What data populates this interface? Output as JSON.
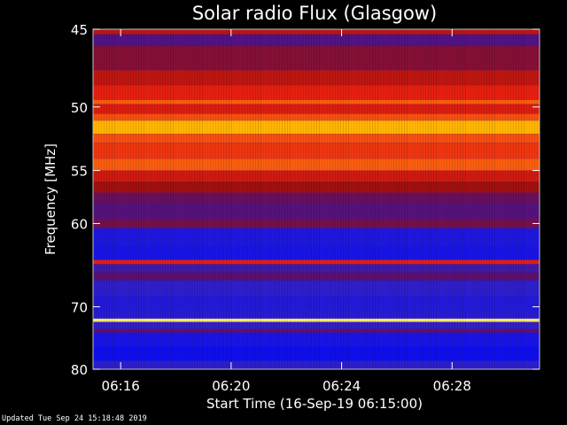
{
  "chart_data": {
    "type": "heatmap",
    "title": "Solar radio Flux (Glasgow)",
    "xlabel": "Start Time (16-Sep-19 06:15:00)",
    "ylabel": "Frequency [MHz]",
    "x_range": [
      "06:15:00",
      "06:31:10"
    ],
    "y_range_mhz": [
      45,
      80
    ],
    "y_scale": "reciprocal",
    "x_ticks": [
      "06:16",
      "06:20",
      "06:24",
      "06:28"
    ],
    "x_tick_minutes": [
      1,
      5,
      9,
      13
    ],
    "y_ticks": [
      45,
      50,
      55,
      60,
      70,
      80
    ],
    "colormap": [
      "#000080",
      "#1010f0",
      "#3020c8",
      "#5a1070",
      "#a01010",
      "#e82010",
      "#ff7010",
      "#ffc000",
      "#ffffa0"
    ],
    "bands": [
      {
        "from_mhz": 45.0,
        "to_mhz": 45.3,
        "intensity": 0.55
      },
      {
        "from_mhz": 45.3,
        "to_mhz": 46.0,
        "intensity": 0.35
      },
      {
        "from_mhz": 46.0,
        "to_mhz": 47.5,
        "intensity": 0.45
      },
      {
        "from_mhz": 47.5,
        "to_mhz": 48.5,
        "intensity": 0.55
      },
      {
        "from_mhz": 48.5,
        "to_mhz": 49.5,
        "intensity": 0.62
      },
      {
        "from_mhz": 49.5,
        "to_mhz": 49.8,
        "intensity": 0.72
      },
      {
        "from_mhz": 49.8,
        "to_mhz": 50.5,
        "intensity": 0.6
      },
      {
        "from_mhz": 50.5,
        "to_mhz": 51.0,
        "intensity": 0.7
      },
      {
        "from_mhz": 51.0,
        "to_mhz": 52.0,
        "intensity": 0.86
      },
      {
        "from_mhz": 52.0,
        "to_mhz": 52.7,
        "intensity": 0.7
      },
      {
        "from_mhz": 52.7,
        "to_mhz": 54.0,
        "intensity": 0.66
      },
      {
        "from_mhz": 54.0,
        "to_mhz": 55.0,
        "intensity": 0.72
      },
      {
        "from_mhz": 55.0,
        "to_mhz": 56.0,
        "intensity": 0.58
      },
      {
        "from_mhz": 56.0,
        "to_mhz": 57.0,
        "intensity": 0.5
      },
      {
        "from_mhz": 57.0,
        "to_mhz": 58.0,
        "intensity": 0.4
      },
      {
        "from_mhz": 58.0,
        "to_mhz": 59.5,
        "intensity": 0.36
      },
      {
        "from_mhz": 59.5,
        "to_mhz": 60.5,
        "intensity": 0.42
      },
      {
        "from_mhz": 60.5,
        "to_mhz": 62.5,
        "intensity": 0.18
      },
      {
        "from_mhz": 62.5,
        "to_mhz": 64.0,
        "intensity": 0.16
      },
      {
        "from_mhz": 64.0,
        "to_mhz": 64.5,
        "intensity": 0.62
      },
      {
        "from_mhz": 64.5,
        "to_mhz": 65.5,
        "intensity": 0.3
      },
      {
        "from_mhz": 65.5,
        "to_mhz": 66.5,
        "intensity": 0.38
      },
      {
        "from_mhz": 66.5,
        "to_mhz": 68.5,
        "intensity": 0.24
      },
      {
        "from_mhz": 68.5,
        "to_mhz": 70.5,
        "intensity": 0.2
      },
      {
        "from_mhz": 70.5,
        "to_mhz": 71.7,
        "intensity": 0.22
      },
      {
        "from_mhz": 71.7,
        "to_mhz": 72.2,
        "intensity": 0.96
      },
      {
        "from_mhz": 72.2,
        "to_mhz": 73.3,
        "intensity": 0.26
      },
      {
        "from_mhz": 73.3,
        "to_mhz": 73.8,
        "intensity": 0.4
      },
      {
        "from_mhz": 73.8,
        "to_mhz": 76.0,
        "intensity": 0.16
      },
      {
        "from_mhz": 76.0,
        "to_mhz": 78.5,
        "intensity": 0.12
      },
      {
        "from_mhz": 78.5,
        "to_mhz": 80.0,
        "intensity": 0.24
      }
    ],
    "grid": false,
    "legend": "none"
  },
  "footer": {
    "updated": "Updated Tue Sep 24 15:18:48 2019"
  }
}
